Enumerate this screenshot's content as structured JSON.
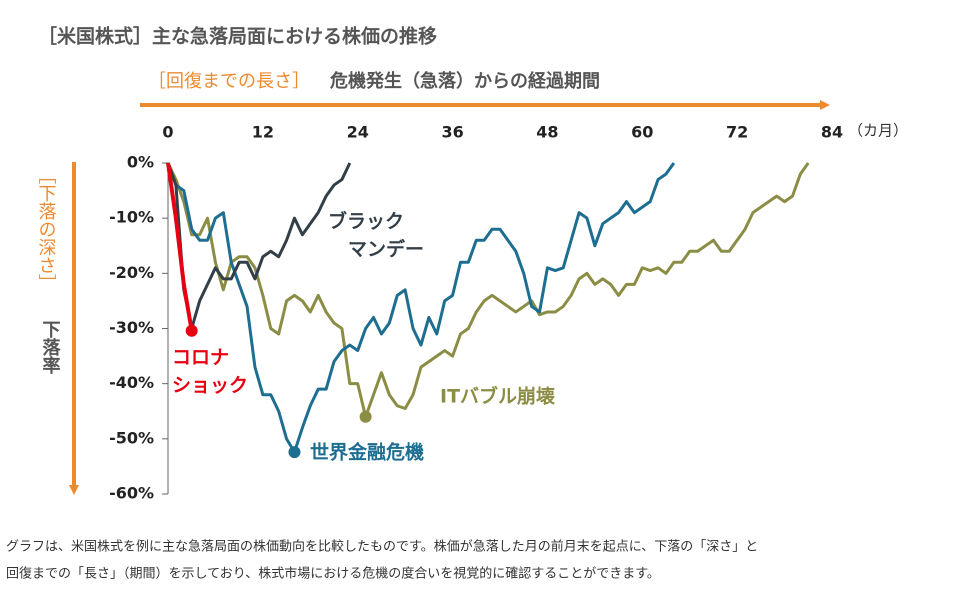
{
  "chart_data": {
    "type": "line",
    "title": "［米国株式］主な急落局面における株価の推移",
    "x_label_bracket": "［回復までの長さ］",
    "x_label": "危機発生（急落）からの経過期間",
    "x_unit": "（カ月）",
    "y_label_bracket": "［下落の深さ］",
    "y_label": "下落率",
    "xlim": [
      0,
      84
    ],
    "xticks": [
      0,
      12,
      24,
      36,
      48,
      60,
      72,
      84
    ],
    "ylim": [
      -60,
      0
    ],
    "yticks": [
      {
        "value": 0,
        "label": "0%"
      },
      {
        "value": -10,
        "label": "-10%"
      },
      {
        "value": -20,
        "label": "-20%"
      },
      {
        "value": -30,
        "label": "-30%"
      },
      {
        "value": -40,
        "label": "-40%"
      },
      {
        "value": -50,
        "label": "-50%"
      },
      {
        "value": -60,
        "label": "-60%"
      }
    ],
    "series": [
      {
        "name": [
          "ITバブル崩壊"
        ],
        "color": "#8c8d45",
        "x": [
          0,
          1,
          2,
          3,
          4,
          5,
          6,
          7,
          8,
          9,
          10,
          11,
          12,
          13,
          14,
          15,
          16,
          17,
          18,
          19,
          20,
          21,
          22,
          23,
          24,
          25,
          26,
          27,
          28,
          29,
          30,
          31,
          32,
          33,
          34,
          35,
          36,
          37,
          38,
          39,
          40,
          41,
          42,
          43,
          44,
          45,
          46,
          47,
          48,
          49,
          50,
          51,
          52,
          53,
          54,
          55,
          56,
          57,
          58,
          59,
          60,
          61,
          62,
          63,
          64,
          65,
          66,
          67,
          68,
          69,
          70,
          71,
          72,
          73,
          74,
          75,
          76,
          77,
          78,
          79,
          80,
          81
        ],
        "values": [
          0,
          -3,
          -7,
          -13,
          -13,
          -10,
          -18,
          -23,
          -18,
          -17,
          -17,
          -19,
          -24,
          -30,
          -31,
          -25,
          -24,
          -25,
          -27,
          -24,
          -27,
          -29,
          -30,
          -40,
          -40,
          -46,
          -42,
          -38,
          -42,
          -44,
          -44.5,
          -42,
          -37,
          -36,
          -35,
          -34,
          -35,
          -31,
          -30,
          -27,
          -25,
          -24,
          -25,
          -26,
          -27,
          -26,
          -25,
          -27.5,
          -27,
          -27,
          -26,
          -24,
          -21,
          -20,
          -22,
          -21,
          -22,
          -24,
          -22,
          -22,
          -19,
          -19.5,
          -19,
          -20,
          -18,
          -18,
          -16,
          -16,
          -15,
          -14,
          -16,
          -16,
          -14,
          -12,
          -9,
          -8,
          -7,
          -6,
          -7,
          -6,
          -2,
          0
        ]
      },
      {
        "name": [
          "世界金融危機"
        ],
        "color": "#1d6e91",
        "x": [
          0,
          1,
          2,
          3,
          4,
          5,
          6,
          7,
          8,
          9,
          10,
          11,
          12,
          13,
          14,
          15,
          16,
          17,
          18,
          19,
          20,
          21,
          22,
          23,
          24,
          25,
          26,
          27,
          28,
          29,
          30,
          31,
          32,
          33,
          34,
          35,
          36,
          37,
          38,
          39,
          40,
          41,
          42,
          43,
          44,
          45,
          46,
          47,
          48,
          49,
          50,
          51,
          52,
          53,
          54,
          55,
          56,
          57,
          58,
          59,
          60,
          61,
          62,
          63,
          64
        ],
        "values": [
          0,
          -4,
          -5,
          -12,
          -14,
          -14,
          -10,
          -9,
          -18,
          -22,
          -26,
          -37,
          -42,
          -42,
          -45,
          -50,
          -52.4,
          -48,
          -44,
          -41,
          -41,
          -36,
          -34,
          -33,
          -34,
          -30,
          -28,
          -31,
          -29,
          -24,
          -23,
          -30,
          -33,
          -28,
          -31,
          -25,
          -24,
          -18,
          -18,
          -14,
          -14,
          -12,
          -12,
          -14,
          -16,
          -20,
          -26,
          -27,
          -19,
          -19.5,
          -19,
          -14,
          -9,
          -10,
          -15,
          -11,
          -10,
          -9,
          -7,
          -9,
          -8,
          -7,
          -3,
          -2,
          0
        ]
      },
      {
        "name": [
          "ブラック",
          "マンデー"
        ],
        "color": "#333f48",
        "x": [
          0,
          1,
          2,
          3,
          4,
          5,
          6,
          7,
          8,
          9,
          10,
          11,
          12,
          13,
          14,
          15,
          16,
          17,
          18,
          19,
          20,
          21,
          22,
          23
        ],
        "values": [
          0,
          -4,
          -23,
          -30,
          -25,
          -22,
          -19,
          -21,
          -21,
          -18,
          -18,
          -21,
          -17,
          -16,
          -17,
          -14,
          -10,
          -13,
          -11,
          -9,
          -6,
          -4,
          -3,
          0
        ]
      },
      {
        "name": [
          "コロナ",
          "ショック"
        ],
        "color": "#e60012",
        "x": [
          0,
          1,
          2,
          3
        ],
        "values": [
          0,
          -10,
          -22,
          -30.4
        ]
      }
    ],
    "caption": [
      "グラフは、米国株式を例に主な急落局面の株価動向を比較したものです。株価が急落した月の前月末を起点に、下落の「深さ」と",
      "回復までの「長さ」（期間）を示しており、株式市場における危機の度合いを視覚的に確認することができます。"
    ]
  }
}
